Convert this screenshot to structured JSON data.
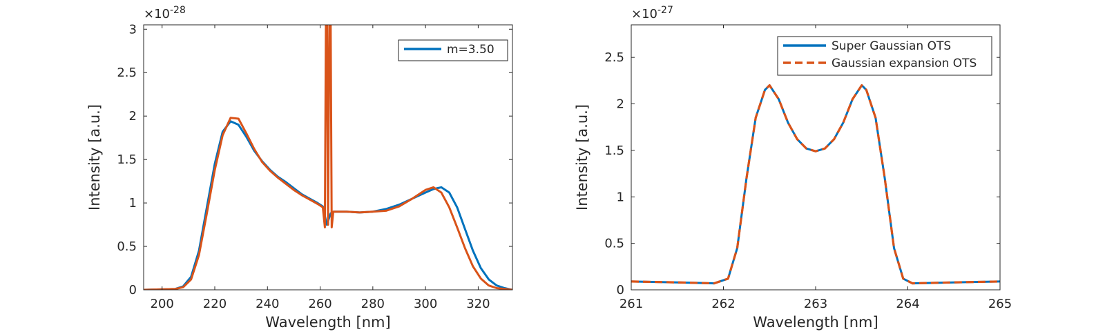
{
  "chart_data": [
    {
      "type": "line",
      "xlabel": "Wavelength [nm]",
      "ylabel": "Intensity [a.u.]",
      "y_exponent_label": "×10",
      "y_exponent": "-28",
      "xlim": [
        193,
        333
      ],
      "ylim": [
        0,
        3.05
      ],
      "xticks": [
        200,
        220,
        240,
        260,
        280,
        300,
        320
      ],
      "yticks": [
        0,
        0.5,
        1,
        1.5,
        2,
        2.5,
        3
      ],
      "ytick_labels": [
        "0",
        "0.5",
        "1",
        "1.5",
        "2",
        "2.5",
        "3"
      ],
      "grid": false,
      "legend_placement": "top-right",
      "series": [
        {
          "name": "m=3.50",
          "color": "#0072BD",
          "style": "solid",
          "x": [
            193,
            205,
            208,
            211,
            214,
            217,
            220,
            223,
            226,
            229,
            232,
            235,
            238,
            241,
            244,
            247,
            250,
            253,
            256,
            259,
            261,
            262.5,
            264,
            265,
            270,
            275,
            280,
            285,
            290,
            295,
            300,
            303,
            306,
            309,
            312,
            315,
            318,
            321,
            324,
            327,
            330,
            333
          ],
          "y": [
            0,
            0.01,
            0.04,
            0.15,
            0.45,
            0.95,
            1.45,
            1.82,
            1.94,
            1.9,
            1.76,
            1.6,
            1.48,
            1.38,
            1.3,
            1.24,
            1.17,
            1.1,
            1.05,
            1.0,
            0.96,
            0.75,
            0.88,
            0.9,
            0.9,
            0.89,
            0.9,
            0.93,
            0.98,
            1.05,
            1.12,
            1.16,
            1.18,
            1.12,
            0.95,
            0.7,
            0.45,
            0.25,
            0.12,
            0.05,
            0.02,
            0.0
          ]
        },
        {
          "name": "",
          "color": "#D95319",
          "style": "solid",
          "x": [
            193,
            205,
            208,
            211,
            214,
            217,
            220,
            223,
            226,
            229,
            232,
            235,
            238,
            241,
            244,
            247,
            250,
            253,
            256,
            259,
            261,
            261.8,
            262.2,
            262.6,
            263,
            263.5,
            264,
            264.4,
            265,
            270,
            275,
            280,
            285,
            290,
            295,
            300,
            303,
            306,
            309,
            312,
            315,
            318,
            321,
            324,
            327,
            330,
            333
          ],
          "y": [
            0,
            0.01,
            0.03,
            0.12,
            0.4,
            0.88,
            1.38,
            1.78,
            1.98,
            1.97,
            1.8,
            1.62,
            1.47,
            1.37,
            1.29,
            1.22,
            1.15,
            1.09,
            1.04,
            0.99,
            0.95,
            0.72,
            3.05,
            3.05,
            0.75,
            3.05,
            3.05,
            0.72,
            0.9,
            0.9,
            0.89,
            0.9,
            0.91,
            0.96,
            1.05,
            1.15,
            1.18,
            1.12,
            0.95,
            0.72,
            0.48,
            0.27,
            0.13,
            0.05,
            0.02,
            0.01,
            0.0
          ]
        }
      ]
    },
    {
      "type": "line",
      "xlabel": "Wavelength [nm]",
      "ylabel": "Intensity [a.u.]",
      "y_exponent_label": "×10",
      "y_exponent": "-27",
      "xlim": [
        261,
        265
      ],
      "ylim": [
        0,
        2.85
      ],
      "xticks": [
        261,
        262,
        263,
        264,
        265
      ],
      "yticks": [
        0,
        0.5,
        1,
        1.5,
        2,
        2.5
      ],
      "ytick_labels": [
        "0",
        "0.5",
        "1",
        "1.5",
        "2",
        "2.5"
      ],
      "grid": false,
      "legend_placement": "top-right",
      "series": [
        {
          "name": "Super Gaussian OTS",
          "color": "#0072BD",
          "style": "solid",
          "x": [
            261,
            261.5,
            261.9,
            262.05,
            262.15,
            262.25,
            262.35,
            262.45,
            262.5,
            262.6,
            262.7,
            262.8,
            262.9,
            263.0,
            263.1,
            263.2,
            263.3,
            263.4,
            263.5,
            263.55,
            263.65,
            263.75,
            263.85,
            263.95,
            264.05,
            264.5,
            265
          ],
          "y": [
            0.09,
            0.08,
            0.07,
            0.12,
            0.45,
            1.2,
            1.85,
            2.15,
            2.2,
            2.05,
            1.8,
            1.62,
            1.52,
            1.49,
            1.52,
            1.62,
            1.8,
            2.05,
            2.2,
            2.15,
            1.85,
            1.2,
            0.45,
            0.12,
            0.07,
            0.08,
            0.09
          ]
        },
        {
          "name": "Gaussian expansion OTS",
          "color": "#D95319",
          "style": "dashed",
          "x": [
            261,
            261.5,
            261.9,
            262.05,
            262.15,
            262.25,
            262.35,
            262.45,
            262.5,
            262.6,
            262.7,
            262.8,
            262.9,
            263.0,
            263.1,
            263.2,
            263.3,
            263.4,
            263.5,
            263.55,
            263.65,
            263.75,
            263.85,
            263.95,
            264.05,
            264.5,
            265
          ],
          "y": [
            0.09,
            0.08,
            0.07,
            0.12,
            0.45,
            1.2,
            1.85,
            2.15,
            2.2,
            2.05,
            1.8,
            1.62,
            1.52,
            1.49,
            1.52,
            1.62,
            1.8,
            2.05,
            2.2,
            2.15,
            1.85,
            1.2,
            0.45,
            0.12,
            0.07,
            0.08,
            0.09
          ]
        }
      ]
    }
  ]
}
